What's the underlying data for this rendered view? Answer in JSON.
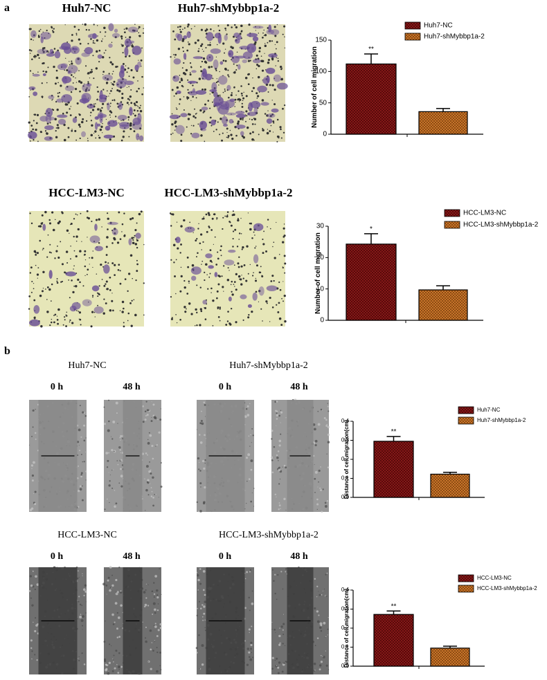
{
  "panels": [
    {
      "label": "a",
      "rows": [
        {
          "titles": [
            "Huh7-NC",
            "Huh7-shMybbp1a-2"
          ]
        },
        {
          "titles": [
            "HCC-LM3-NC",
            "HCC-LM3-shMybbp1a-2"
          ]
        }
      ]
    },
    {
      "label": "b",
      "rows": [
        {
          "titles": [
            "Huh7-NC",
            "Huh7-shMybbp1a-2"
          ],
          "times": [
            "0 h",
            "48 h",
            "0 h",
            "48 h"
          ]
        },
        {
          "titles": [
            "HCC-LM3-NC",
            "HCC-LM3-shMybbp1a-2"
          ],
          "times": [
            "0 h",
            "48 h",
            "0 h",
            "48 h"
          ]
        }
      ]
    }
  ],
  "chart_data": [
    {
      "type": "bar",
      "y_label": "Number of cell migration",
      "categories": [
        null
      ],
      "series": [
        {
          "name": "Huh7-NC",
          "color": "#8b1a1a",
          "values": [
            112
          ],
          "errors": [
            16
          ]
        },
        {
          "name": "Huh7-shMybbp1a-2",
          "color": "#c8742a",
          "values": [
            36
          ],
          "errors": [
            5
          ]
        }
      ],
      "annotations": [
        "**"
      ],
      "ylim": [
        0,
        150
      ],
      "yticks": [
        0,
        50,
        100,
        150
      ]
    },
    {
      "type": "bar",
      "y_label": "Number of cell migration",
      "categories": [
        null
      ],
      "series": [
        {
          "name": "HCC-LM3-NC",
          "color": "#8b1a1a",
          "values": [
            24.3
          ],
          "errors": [
            3.3
          ]
        },
        {
          "name": "HCC-LM3-shMybbp1a-2",
          "color": "#c8742a",
          "values": [
            9.7
          ],
          "errors": [
            1.3
          ]
        }
      ],
      "annotations": [
        "*"
      ],
      "ylim": [
        0,
        30
      ],
      "yticks": [
        0,
        10,
        20,
        30
      ]
    },
    {
      "type": "bar",
      "y_label": "Distance of cell migration(cm)",
      "categories": [
        null
      ],
      "series": [
        {
          "name": "Huh7-NC",
          "color": "#8b1a1a",
          "values": [
            0.295
          ],
          "errors": [
            0.025
          ]
        },
        {
          "name": "Huh7-shMybbp1a-2",
          "color": "#c8742a",
          "values": [
            0.122
          ],
          "errors": [
            0.01
          ]
        }
      ],
      "annotations": [
        "**"
      ],
      "ylim": [
        0,
        0.4
      ],
      "yticks": [
        {
          "value": 0,
          "label": "0.0"
        },
        0.1,
        0.2,
        0.3,
        0.4
      ]
    },
    {
      "type": "bar",
      "y_label": "Distance of cell migration(cm)",
      "categories": [
        null
      ],
      "series": [
        {
          "name": "HCC-LM3-NC",
          "color": "#8b1a1a",
          "values": [
            0.272
          ],
          "errors": [
            0.018
          ]
        },
        {
          "name": "HCC-LM3-shMybbp1a-2",
          "color": "#c8742a",
          "values": [
            0.095
          ],
          "errors": [
            0.01
          ]
        }
      ],
      "annotations": [
        "**"
      ],
      "ylim": [
        0,
        0.4
      ],
      "yticks": [
        {
          "value": 0,
          "label": "0.0"
        },
        0.1,
        0.2,
        0.3,
        0.4
      ]
    }
  ]
}
